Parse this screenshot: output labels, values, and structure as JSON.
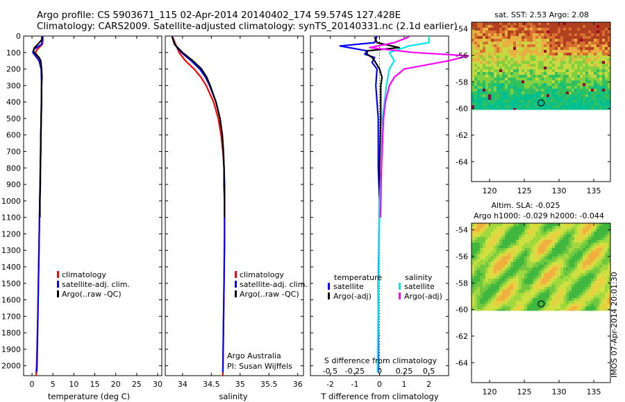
{
  "header": {
    "line1": "Argo profile: CS 5903671_115 02-Apr-2014 20140402_174 59.574S 127.428E",
    "line2": "Climatology: CARS2009. Satellite-adjusted climatology: synTS_20140331.nc (2.1d earlier)"
  },
  "colors": {
    "climatology": "#ff0000",
    "satellite": "#0000ff",
    "argo": "#000000",
    "sal_satellite": "#00e5ee",
    "sal_argo": "#ff00ff"
  },
  "chart_data": [
    {
      "type": "line",
      "id": "temperature",
      "xlabel": "temperature (deg C)",
      "ylabel": "",
      "xlim": [
        -2,
        31
      ],
      "ylim": [
        2060,
        0
      ],
      "xticks": [
        "0",
        "5",
        "10",
        "15",
        "20",
        "25",
        "30"
      ],
      "xtick_values": [
        0,
        5,
        10,
        15,
        20,
        25,
        30
      ],
      "yticks": [
        "0",
        "100",
        "200",
        "300",
        "400",
        "500",
        "600",
        "700",
        "800",
        "900",
        "1000",
        "1100",
        "1200",
        "1300",
        "1400",
        "1500",
        "1600",
        "1700",
        "1800",
        "1900",
        "2000"
      ],
      "ytick_values": [
        0,
        100,
        200,
        300,
        400,
        500,
        600,
        700,
        800,
        900,
        1000,
        1100,
        1200,
        1300,
        1400,
        1500,
        1600,
        1700,
        1800,
        1900,
        2000
      ],
      "legend": [
        "climatology",
        "satellite-adj. clim.",
        "Argo(..raw -QC)"
      ],
      "series": [
        {
          "name": "climatology",
          "depth": [
            0,
            20,
            50,
            80,
            100,
            120,
            150,
            200,
            300,
            500,
            800,
            1100,
            1400,
            1700,
            2000,
            2060
          ],
          "values": [
            2.6,
            2.6,
            2.5,
            1.3,
            0.8,
            1.3,
            2.0,
            2.3,
            2.3,
            2.2,
            2.0,
            1.8,
            1.6,
            1.4,
            1.1,
            1.0
          ]
        },
        {
          "name": "satellite-adj. clim.",
          "depth": [
            0,
            20,
            50,
            80,
            100,
            120,
            150,
            200,
            300,
            500,
            800,
            1100,
            1400,
            1700,
            2000,
            2040
          ],
          "values": [
            2.5,
            2.5,
            2.3,
            0.5,
            0.2,
            0.8,
            1.7,
            2.2,
            2.3,
            2.2,
            2.0,
            1.8,
            1.6,
            1.4,
            1.2,
            1.1
          ]
        },
        {
          "name": "Argo(..raw -QC)",
          "depth": [
            5,
            20,
            50,
            70,
            90,
            110,
            130,
            150,
            200,
            250,
            300,
            400,
            500,
            600,
            700,
            800,
            900,
            1000,
            1100
          ],
          "values": [
            2.3,
            2.4,
            1.4,
            0.6,
            0.3,
            0.9,
            1.7,
            2.1,
            2.3,
            2.4,
            2.3,
            2.3,
            2.2,
            2.1,
            2.1,
            2.0,
            2.0,
            1.9,
            1.9
          ]
        }
      ]
    },
    {
      "type": "line",
      "id": "salinity",
      "xlabel": "salinity",
      "xlim": [
        33.7,
        36.1
      ],
      "ylim": [
        2060,
        0
      ],
      "xticks": [
        "34",
        "34.5",
        "35",
        "35.5",
        "36"
      ],
      "xtick_values": [
        34,
        34.5,
        35,
        35.5,
        36
      ],
      "legend": [
        "climatology",
        "satellite-adj. clim.",
        "Argo(..raw -QC)"
      ],
      "annotations": [
        "Argo Australia",
        "PI: Susan Wijffels"
      ],
      "series": [
        {
          "name": "climatology",
          "depth": [
            0,
            50,
            100,
            150,
            200,
            250,
            300,
            400,
            500,
            600,
            700,
            800,
            900,
            1000,
            1200,
            1500,
            2060
          ],
          "values": [
            33.82,
            33.88,
            33.94,
            34.05,
            34.2,
            34.32,
            34.41,
            34.54,
            34.62,
            34.67,
            34.7,
            34.72,
            34.72,
            34.73,
            34.73,
            34.72,
            34.7
          ]
        },
        {
          "name": "satellite-adj. clim.",
          "depth": [
            0,
            50,
            100,
            150,
            200,
            250,
            300,
            400,
            500,
            600,
            700,
            800,
            900,
            1000,
            1200,
            1500,
            2040
          ],
          "values": [
            33.82,
            33.86,
            33.98,
            34.15,
            34.3,
            34.4,
            34.47,
            34.58,
            34.65,
            34.69,
            34.71,
            34.72,
            34.73,
            34.73,
            34.73,
            34.72,
            34.7
          ]
        },
        {
          "name": "Argo(..raw -QC)",
          "depth": [
            5,
            50,
            100,
            150,
            200,
            250,
            300,
            400,
            500,
            600,
            700,
            800,
            900,
            1000,
            1100
          ],
          "values": [
            33.82,
            33.86,
            34.0,
            34.18,
            34.33,
            34.42,
            34.48,
            34.58,
            34.65,
            34.69,
            34.71,
            34.72,
            34.72,
            34.73,
            34.73
          ]
        }
      ]
    },
    {
      "type": "line",
      "id": "difference",
      "xlabel": "T difference from climatology",
      "xlabel2": "S difference from climatology",
      "xlim": [
        -2.8,
        2.8
      ],
      "ylim": [
        2060,
        0
      ],
      "xticks": [
        "-2",
        "-1",
        "0",
        "1",
        "2"
      ],
      "xtick_values": [
        -2,
        -1,
        0,
        1,
        2
      ],
      "xticks2": [
        "-0.5",
        "-0.25",
        "0",
        "0.25",
        "0.5"
      ],
      "xtick2_values": [
        -0.5,
        -0.25,
        0,
        0.25,
        0.5
      ],
      "legend_headings": [
        "temperature",
        "salinity"
      ],
      "legend": [
        "satellite",
        "Argo(-adj)",
        "satellite",
        "Argo(-adj)"
      ],
      "series": [
        {
          "name": "satellite",
          "depth": [
            0,
            40,
            60,
            90,
            110,
            130,
            160,
            200,
            300,
            500,
            800,
            1000,
            1500,
            2000,
            2040
          ],
          "values": [
            -0.1,
            -0.2,
            -1.6,
            -0.5,
            -0.6,
            -0.2,
            -0.3,
            -0.1,
            -0.15,
            -0.05,
            -0.05,
            0,
            -0.05,
            -0.05,
            -0.05
          ]
        },
        {
          "name": "Argo(-adj)",
          "depth": [
            5,
            40,
            70,
            90,
            110,
            130,
            150,
            200,
            250,
            300,
            400,
            500,
            800,
            1100
          ],
          "values": [
            -0.2,
            -0.1,
            0.8,
            -0.5,
            -0.5,
            -0.3,
            -0.2,
            0,
            0.1,
            0.05,
            0.05,
            0.05,
            0,
            0
          ]
        },
        {
          "name": "satellite",
          "depth": [
            0,
            40,
            60,
            100,
            150,
            200,
            300,
            500,
            800,
            1000,
            1500,
            2000,
            2040
          ],
          "values": [
            0.5,
            0.5,
            0.3,
            0.1,
            0.15,
            0.1,
            0.07,
            0.03,
            0.02,
            0,
            -0.01,
            -0.02,
            -0.02
          ]
        },
        {
          "name": "Argo(-adj)",
          "depth": [
            5,
            40,
            70,
            100,
            120,
            150,
            200,
            250,
            300,
            400,
            500,
            800,
            1100
          ],
          "values": [
            0.3,
            0.15,
            -0.1,
            0.35,
            0.9,
            0.7,
            0.25,
            0.15,
            0.1,
            0.06,
            0.04,
            0.02,
            0.01
          ]
        }
      ]
    },
    {
      "type": "heatmap",
      "id": "sst-map",
      "title": "sat. SST: 2.53  Argo: 2.08",
      "xlim": [
        117.4,
        137.4
      ],
      "ylim": [
        -65.5,
        -53.5
      ],
      "xticks": [
        "120",
        "125",
        "130",
        "135"
      ],
      "xtick_values": [
        120,
        125,
        130,
        135
      ],
      "yticks": [
        "-54",
        "-56",
        "-58",
        "-60",
        "-62",
        "-64"
      ],
      "ytick_values": [
        -54,
        -56,
        -58,
        -60,
        -62,
        -64
      ],
      "float_position": [
        127.428,
        -59.574
      ]
    },
    {
      "type": "heatmap",
      "id": "sla-map",
      "title": "Altim. SLA: -0.025",
      "subtitle": "Argo h1000: -0.029 h2000: -0.044",
      "xlim": [
        117.4,
        137.4
      ],
      "ylim": [
        -65.5,
        -53.5
      ],
      "xticks": [
        "120",
        "125",
        "130",
        "135"
      ],
      "xtick_values": [
        120,
        125,
        130,
        135
      ],
      "yticks": [
        "-54",
        "-56",
        "-58",
        "-60",
        "-62",
        "-64"
      ],
      "ytick_values": [
        -54,
        -56,
        -58,
        -60,
        -62,
        -64
      ],
      "float_position": [
        127.428,
        -59.574
      ]
    }
  ],
  "footer": {
    "stamp": "IMOS 07-Apr-2014 20:01:30"
  }
}
